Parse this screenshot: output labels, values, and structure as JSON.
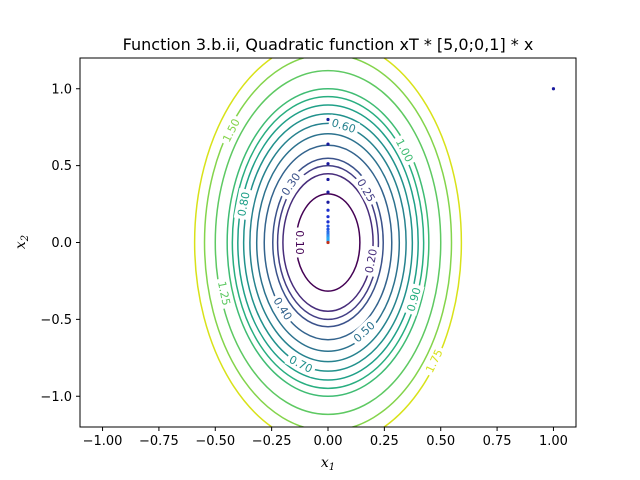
{
  "chart_data": {
    "type": "contour",
    "title": "Function 3.b.ii, Quadratic function xT * [5,0;0,1] * x",
    "xlabel": "x",
    "xlabel_sub": "1",
    "ylabel": "x",
    "ylabel_sub": "2",
    "xlim": [
      -1.1,
      1.1
    ],
    "ylim": [
      -1.2,
      1.2
    ],
    "x_ticks": [
      {
        "value": -1.0,
        "label": "−1.00"
      },
      {
        "value": -0.75,
        "label": "−0.75"
      },
      {
        "value": -0.5,
        "label": "−0.50"
      },
      {
        "value": -0.25,
        "label": "−0.25"
      },
      {
        "value": 0.0,
        "label": "0.00"
      },
      {
        "value": 0.25,
        "label": "0.25"
      },
      {
        "value": 0.5,
        "label": "0.50"
      },
      {
        "value": 0.75,
        "label": "0.75"
      },
      {
        "value": 1.0,
        "label": "1.00"
      }
    ],
    "y_ticks": [
      {
        "value": -1.0,
        "label": "−1.0"
      },
      {
        "value": -0.5,
        "label": "−0.5"
      },
      {
        "value": 0.0,
        "label": "0.0"
      },
      {
        "value": 0.5,
        "label": "0.5"
      },
      {
        "value": 1.0,
        "label": "1.0"
      }
    ],
    "function_matrix": [
      [
        5,
        0
      ],
      [
        0,
        1
      ]
    ],
    "contour_levels": [
      0.1,
      0.2,
      0.25,
      0.3,
      0.4,
      0.5,
      0.6,
      0.7,
      0.8,
      0.9,
      1.0,
      1.25,
      1.5,
      1.75
    ],
    "contour_colors": [
      "#440154",
      "#472d7b",
      "#433e85",
      "#3b528b",
      "#33638d",
      "#2c728e",
      "#26828e",
      "#21918c",
      "#1fa088",
      "#28ae80",
      "#3fbc73",
      "#5ec962",
      "#84d44b",
      "#d8e219"
    ],
    "contour_labels": [
      {
        "text": "0.10",
        "x": -0.125,
        "y": 0.0,
        "level": 0.1
      },
      {
        "text": "0.20",
        "x": 0.19,
        "y": -0.12,
        "level": 0.2
      },
      {
        "text": "0.25",
        "x": 0.17,
        "y": 0.34,
        "level": 0.25
      },
      {
        "text": "0.30",
        "x": -0.165,
        "y": 0.38,
        "level": 0.3
      },
      {
        "text": "0.40",
        "x": -0.2,
        "y": -0.43,
        "level": 0.4
      },
      {
        "text": "0.50",
        "x": 0.16,
        "y": -0.58,
        "level": 0.5
      },
      {
        "text": "0.60",
        "x": 0.07,
        "y": 0.76,
        "level": 0.6
      },
      {
        "text": "0.70",
        "x": -0.12,
        "y": -0.79,
        "level": 0.7
      },
      {
        "text": "0.80",
        "x": -0.375,
        "y": 0.25,
        "level": 0.8
      },
      {
        "text": "0.90",
        "x": 0.38,
        "y": -0.37,
        "level": 0.9
      },
      {
        "text": "1.00",
        "x": 0.34,
        "y": 0.6,
        "level": 1.0
      },
      {
        "text": "1.25",
        "x": -0.46,
        "y": -0.33,
        "level": 1.25
      },
      {
        "text": "1.50",
        "x": -0.43,
        "y": 0.73,
        "level": 1.5
      },
      {
        "text": "1.75",
        "x": 0.47,
        "y": -0.77,
        "level": 1.75
      }
    ],
    "path_points": [
      {
        "x": 1.0,
        "y": 1.0,
        "color": "#1a1a9e"
      },
      {
        "x": 0.0,
        "y": 0.8,
        "color": "#1a1a9e"
      },
      {
        "x": 0.0,
        "y": 0.64,
        "color": "#1a1a9e"
      },
      {
        "x": 0.0,
        "y": 0.512,
        "color": "#1a1a9e"
      },
      {
        "x": 0.0,
        "y": 0.41,
        "color": "#1a1a9e"
      },
      {
        "x": 0.0,
        "y": 0.328,
        "color": "#1a1a9e"
      },
      {
        "x": 0.0,
        "y": 0.262,
        "color": "#1a1a9e"
      },
      {
        "x": 0.0,
        "y": 0.21,
        "color": "#1c2fd0"
      },
      {
        "x": 0.0,
        "y": 0.168,
        "color": "#1c2fd0"
      },
      {
        "x": 0.0,
        "y": 0.134,
        "color": "#1c2fd0"
      },
      {
        "x": 0.0,
        "y": 0.107,
        "color": "#2050e0"
      },
      {
        "x": 0.0,
        "y": 0.086,
        "color": "#2050e0"
      },
      {
        "x": 0.0,
        "y": 0.069,
        "color": "#2a70e8"
      },
      {
        "x": 0.0,
        "y": 0.055,
        "color": "#2a70e8"
      },
      {
        "x": 0.0,
        "y": 0.044,
        "color": "#2e8ff0"
      },
      {
        "x": 0.0,
        "y": 0.035,
        "color": "#2e8ff0"
      },
      {
        "x": 0.0,
        "y": 0.028,
        "color": "#2aa8f5"
      },
      {
        "x": 0.0,
        "y": 0.018,
        "color": "#2aa8f5"
      },
      {
        "x": 0.0,
        "y": 0.01,
        "color": "#2aa8f5"
      },
      {
        "x": 0.0,
        "y": 0.0,
        "color": "#c0301a"
      }
    ],
    "grid": false,
    "legend": "none"
  }
}
